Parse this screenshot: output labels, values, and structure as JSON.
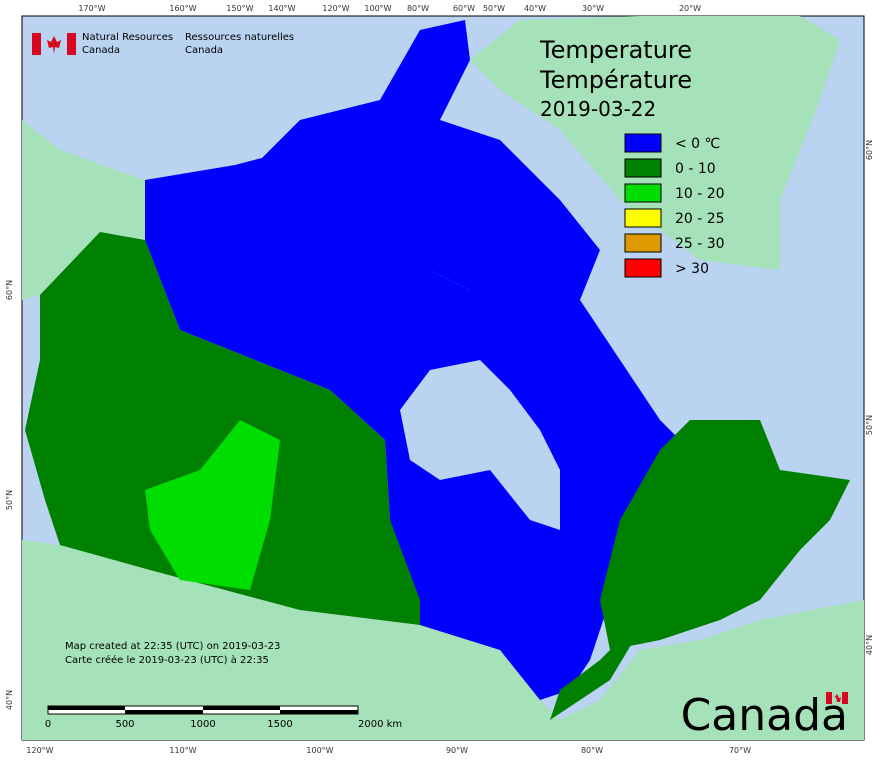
{
  "header": {
    "org_en": [
      "Natural Resources",
      "Canada"
    ],
    "org_fr": [
      "Ressources naturelles",
      "Canada"
    ]
  },
  "title": [
    "Temperature",
    "Température",
    "2019-03-22"
  ],
  "legend": [
    {
      "label": "< 0 ℃",
      "color": "#0000ff"
    },
    {
      "label": "0 - 10",
      "color": "#008000"
    },
    {
      "label": "10 - 20",
      "color": "#00dd00"
    },
    {
      "label": "20 - 25",
      "color": "#ffff00"
    },
    {
      "label": "25 - 30",
      "color": "#dd9900"
    },
    {
      "label": "> 30",
      "color": "#ff0000"
    }
  ],
  "longitudes_top": [
    "170°W",
    "160°W",
    "150°W",
    "140°W",
    "120°W",
    "100°W",
    "80°W",
    "60°W",
    "50°W",
    "40°W",
    "30°W",
    "20°W"
  ],
  "longitudes_bottom": [
    "120°W",
    "110°W",
    "100°W",
    "90°W",
    "80°W",
    "70°W"
  ],
  "latitudes_left": [
    "60°N",
    "50°N",
    "40°N"
  ],
  "latitudes_right": [
    "60°N",
    "50°N",
    "40°N"
  ],
  "notes": [
    "Map created at 22:35 (UTC) on 2019-03-23",
    "Carte créée le 2019-03-23 (UTC) à 22:35"
  ],
  "scale_bar": [
    "0",
    "500",
    "1000",
    "1500",
    "2000 km"
  ],
  "wordmark": "Canada"
}
